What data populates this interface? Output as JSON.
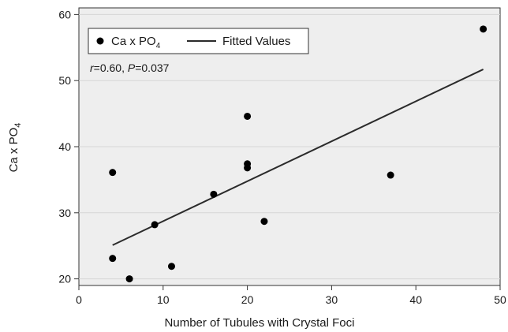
{
  "chart_data": {
    "type": "scatter",
    "xlabel": "Number of Tubules with Crystal Foci",
    "ylabel_main": "Ca x PO",
    "ylabel_sub": "4",
    "xlim": [
      0,
      50
    ],
    "ylim": [
      19,
      61
    ],
    "xticks": [
      0,
      10,
      20,
      30,
      40,
      50
    ],
    "yticks": [
      20,
      30,
      40,
      50,
      60
    ],
    "grid": true,
    "legend_position": "top-left",
    "legend": {
      "points_main": "Ca x PO",
      "points_sub": "4",
      "line": "Fitted Values"
    },
    "annotation": {
      "r_symbol": "r",
      "r_text": "=0.60, ",
      "p_symbol": "P",
      "p_text": "=0.037"
    },
    "points": [
      {
        "x": 4,
        "y": 36.1
      },
      {
        "x": 4,
        "y": 23.1
      },
      {
        "x": 6,
        "y": 20.0
      },
      {
        "x": 9,
        "y": 28.2
      },
      {
        "x": 11,
        "y": 21.9
      },
      {
        "x": 16,
        "y": 32.8
      },
      {
        "x": 20,
        "y": 44.6
      },
      {
        "x": 20,
        "y": 37.4
      },
      {
        "x": 20,
        "y": 36.8
      },
      {
        "x": 22,
        "y": 28.7
      },
      {
        "x": 37,
        "y": 35.7
      },
      {
        "x": 48,
        "y": 57.8
      }
    ],
    "fitted_line": [
      {
        "x": 4,
        "y": 25.1
      },
      {
        "x": 48,
        "y": 51.7
      }
    ],
    "colors": {
      "plot_background": "#eeeeee",
      "points": "#000000",
      "fitted_line": "#2b2b2b"
    }
  }
}
